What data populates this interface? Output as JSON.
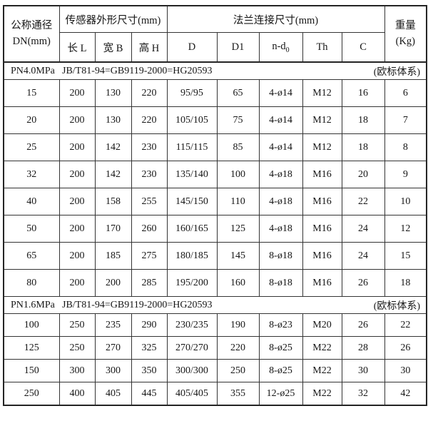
{
  "table": {
    "header": {
      "dn_title": "公称通径",
      "dn_sub": "DN(mm)",
      "sensor_group": "传感器外形尺寸(mm)",
      "flange_group": "法兰连接尺寸(mm)",
      "weight_title": "重量",
      "weight_sub": "(Kg)",
      "sub_columns": [
        "长 L",
        "宽 B",
        "高 H",
        "D",
        "D1",
        "n-d",
        "Th",
        "C"
      ],
      "nd_subscript": "0"
    },
    "sections": [
      {
        "pressure": "PN4.0MPa",
        "standard": "JB/T81-94=GB9119-2000=HG20593",
        "note": "(欧标体系)",
        "rows": [
          [
            "15",
            "200",
            "130",
            "220",
            "95/95",
            "65",
            "4-ø14",
            "M12",
            "16",
            "6"
          ],
          [
            "20",
            "200",
            "130",
            "220",
            "105/105",
            "75",
            "4-ø14",
            "M12",
            "18",
            "7"
          ],
          [
            "25",
            "200",
            "142",
            "230",
            "115/115",
            "85",
            "4-ø14",
            "M12",
            "18",
            "8"
          ],
          [
            "32",
            "200",
            "142",
            "230",
            "135/140",
            "100",
            "4-ø18",
            "M16",
            "20",
            "9"
          ],
          [
            "40",
            "200",
            "158",
            "255",
            "145/150",
            "110",
            "4-ø18",
            "M16",
            "22",
            "10"
          ],
          [
            "50",
            "200",
            "170",
            "260",
            "160/165",
            "125",
            "4-ø18",
            "M16",
            "24",
            "12"
          ],
          [
            "65",
            "200",
            "185",
            "275",
            "180/185",
            "145",
            "8-ø18",
            "M16",
            "24",
            "15"
          ],
          [
            "80",
            "200",
            "200",
            "285",
            "195/200",
            "160",
            "8-ø18",
            "M16",
            "26",
            "18"
          ]
        ]
      },
      {
        "pressure": "PN1.6MPa",
        "standard": "JB/T81-94=GB9119-2000=HG20593",
        "note": "(欧标体系)",
        "rows": [
          [
            "100",
            "250",
            "235",
            "290",
            "230/235",
            "190",
            "8-ø23",
            "M20",
            "26",
            "22"
          ],
          [
            "125",
            "250",
            "270",
            "325",
            "270/270",
            "220",
            "8-ø25",
            "M22",
            "28",
            "26"
          ],
          [
            "150",
            "300",
            "300",
            "350",
            "300/300",
            "250",
            "8-ø25",
            "M22",
            "30",
            "30"
          ],
          [
            "250",
            "400",
            "405",
            "445",
            "405/405",
            "355",
            "12-ø25",
            "M22",
            "32",
            "42"
          ]
        ]
      }
    ]
  }
}
